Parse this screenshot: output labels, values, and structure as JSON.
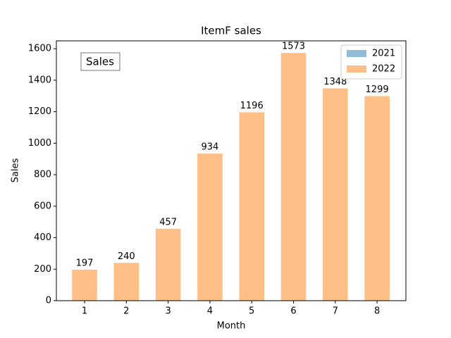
{
  "chart_data": {
    "type": "bar",
    "title": "ItemF sales",
    "xlabel": "Month",
    "ylabel": "Sales",
    "annotation": "Sales",
    "x": [
      1,
      2,
      3,
      4,
      5,
      6,
      7,
      8
    ],
    "series": [
      {
        "name": "2021",
        "color": "#8fbbd9",
        "values": [
          0,
          0,
          0,
          0,
          0,
          0,
          0,
          0
        ]
      },
      {
        "name": "2022",
        "color": "#ffbf86",
        "values": [
          197,
          240,
          457,
          934,
          1196,
          1573,
          1348,
          1299
        ]
      }
    ],
    "xlim": [
      0.325,
      8.69
    ],
    "xticks": [
      1,
      2,
      3,
      4,
      5,
      6,
      7,
      8
    ],
    "ylim": [
      0,
      1650
    ],
    "yticks": [
      0,
      200,
      400,
      600,
      800,
      1000,
      1200,
      1400,
      1600
    ],
    "legend": "upper right"
  }
}
